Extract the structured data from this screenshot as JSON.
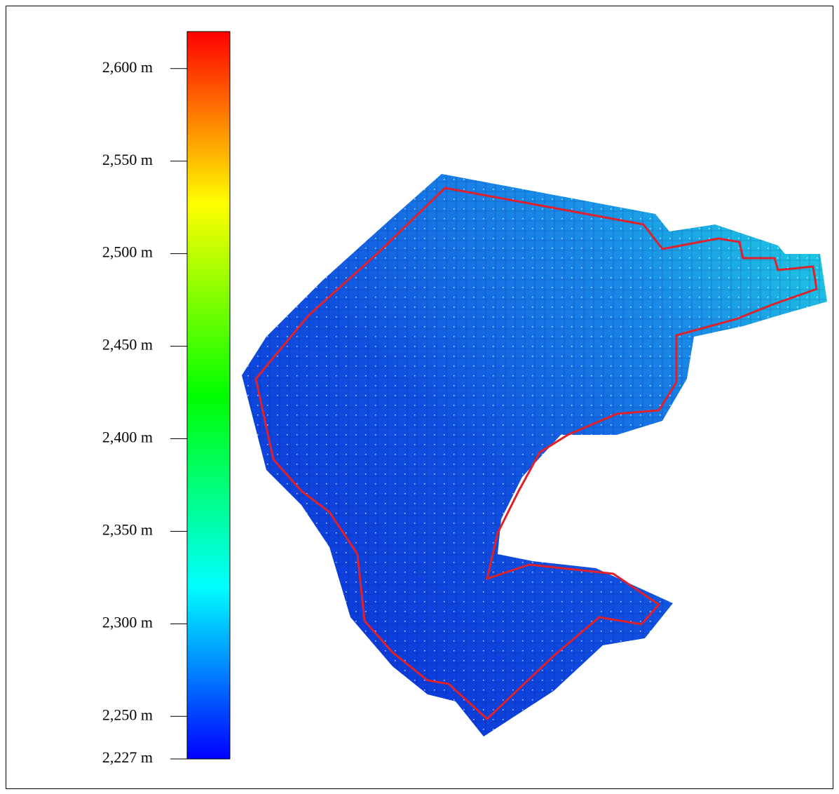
{
  "colorbar": {
    "range": [
      2227,
      2620
    ],
    "ticks": [
      {
        "value": 2227,
        "label": "2,227 m"
      },
      {
        "value": 2250,
        "label": "2,250 m"
      },
      {
        "value": 2300,
        "label": "2,300 m"
      },
      {
        "value": 2350,
        "label": "2,350 m"
      },
      {
        "value": 2400,
        "label": "2,400 m"
      },
      {
        "value": 2450,
        "label": "2,450 m"
      },
      {
        "value": 2500,
        "label": "2,500 m"
      },
      {
        "value": 2550,
        "label": "2,550 m"
      },
      {
        "value": 2600,
        "label": "2,600 m"
      }
    ],
    "color_stops": [
      {
        "value": 2227,
        "color": "#0000ff"
      },
      {
        "value": 2320,
        "color": "#00ffff"
      },
      {
        "value": 2423,
        "color": "#00ff00"
      },
      {
        "value": 2527,
        "color": "#ffff00"
      },
      {
        "value": 2620,
        "color": "#ff0000"
      }
    ]
  }
}
